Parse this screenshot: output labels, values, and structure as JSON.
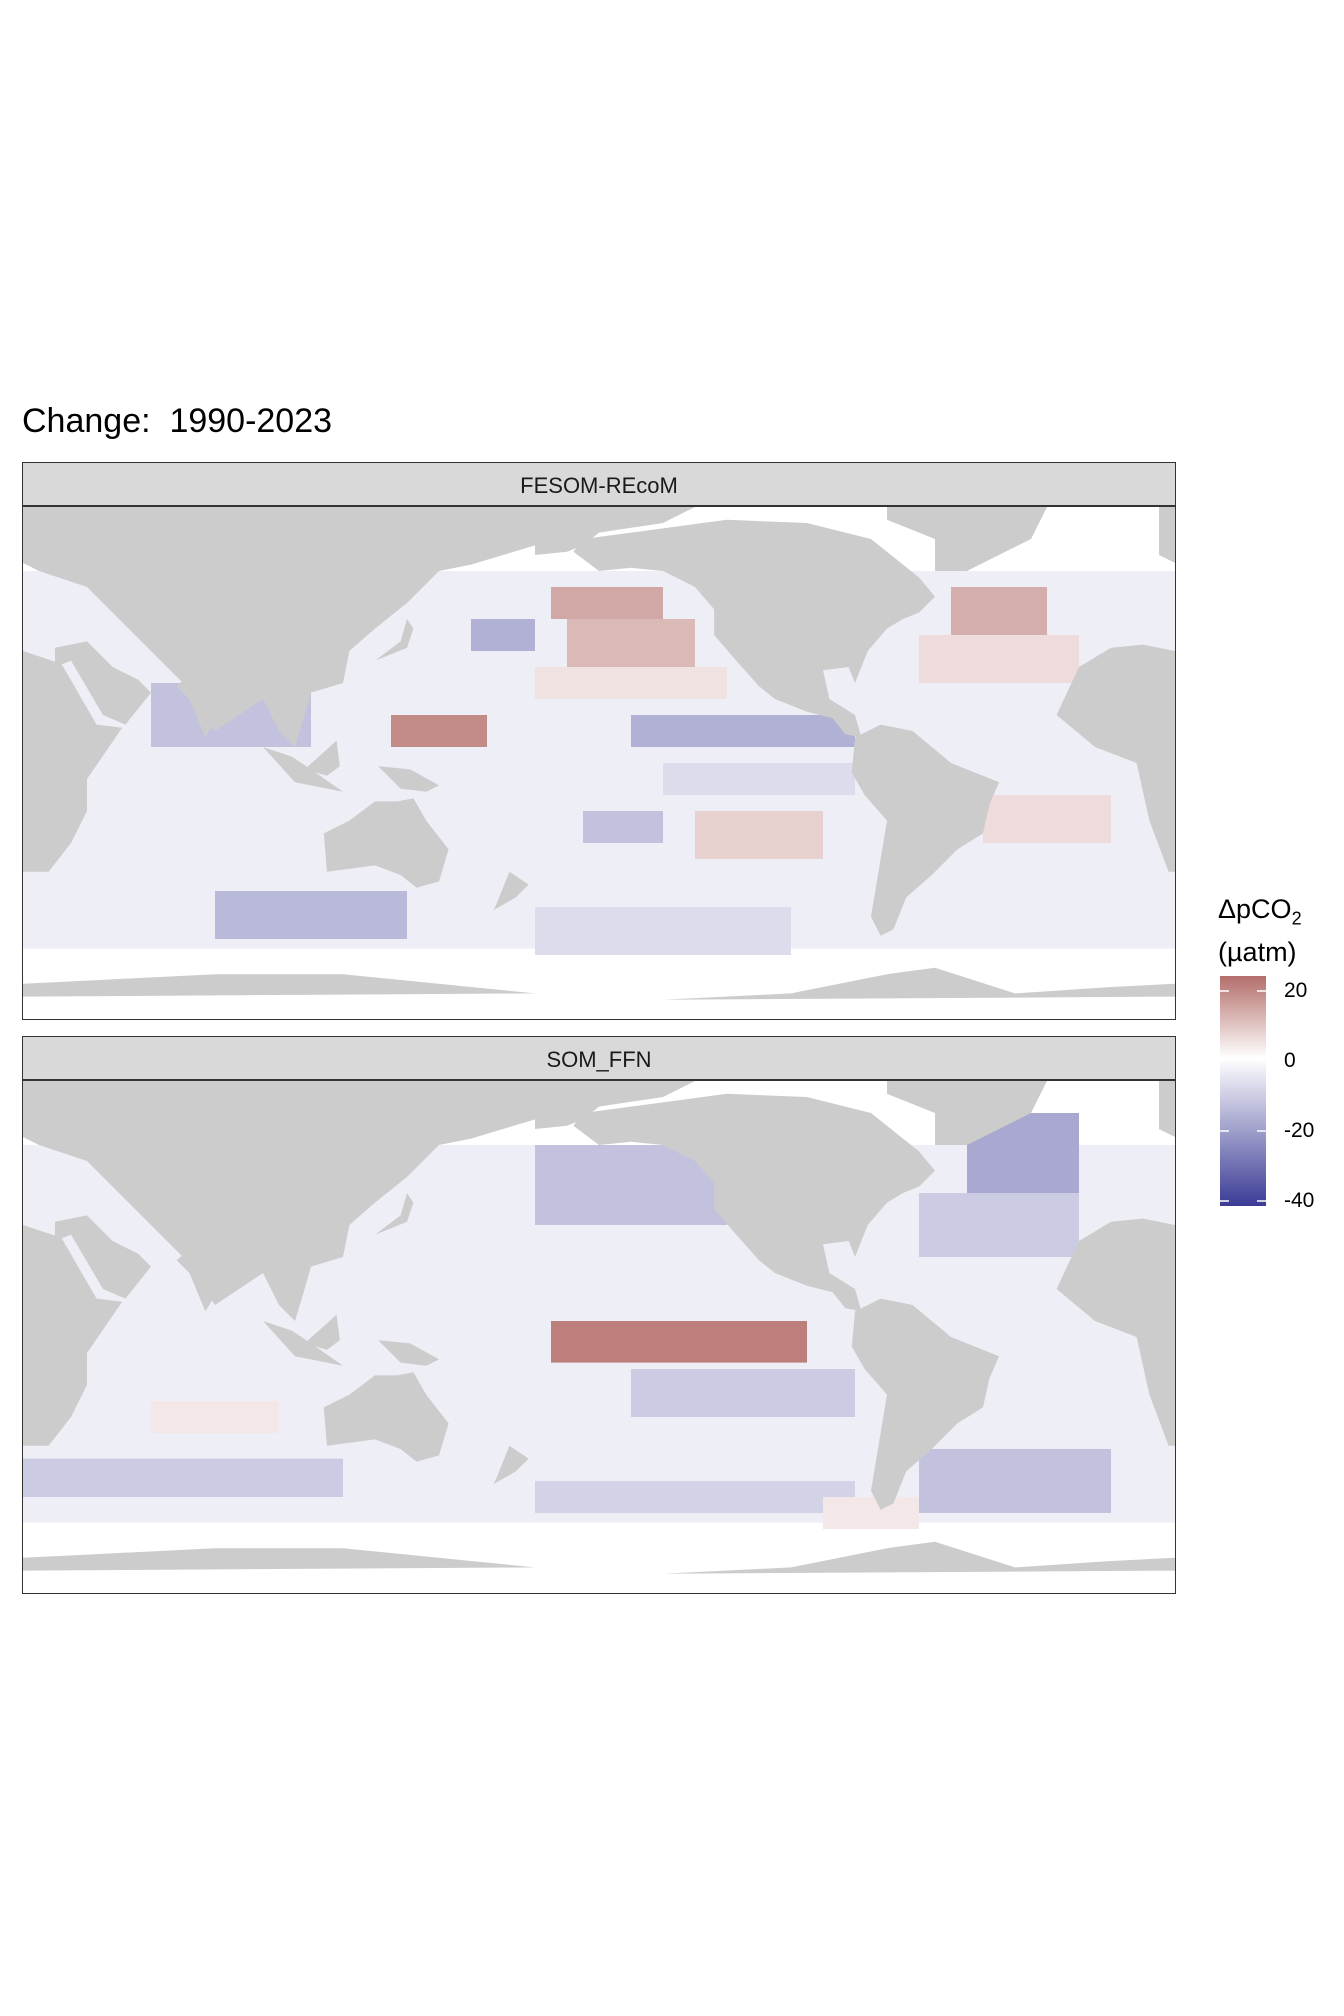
{
  "title": "Change:  1990-2023",
  "legend": {
    "title_main": "ΔpCO",
    "title_sub": "2",
    "title_unit": "(µatm)",
    "ticks": [
      "20",
      "0",
      "-20",
      "-40"
    ],
    "colors": {
      "high": "#b36e6a",
      "mid": "#ffffff",
      "low": "#3b3b96"
    }
  },
  "panels": [
    {
      "label": "FESOM-REcoM"
    },
    {
      "label": "SOM_FFN"
    }
  ],
  "colors": {
    "land": "#cccccc",
    "ocean_missing": "#ffffff",
    "frame": "#333333",
    "strip": "#d9d9d9"
  },
  "chart_data": [
    {
      "type": "heatmap",
      "title": "FESOM-REcoM",
      "xlabel": "",
      "ylabel": "",
      "xlim": [
        -180,
        180
      ],
      "ylim": [
        -80,
        80
      ],
      "value_range": [
        -45,
        25
      ],
      "variable": "ΔpCO2 (µatm)",
      "features": [
        {
          "lon": [
            -175,
            -140
          ],
          "lat": [
            45,
            55
          ],
          "value": 15
        },
        {
          "lon": [
            160,
            180
          ],
          "lat": [
            35,
            45
          ],
          "value": -18
        },
        {
          "lon": [
            -170,
            -130
          ],
          "lat": [
            30,
            45
          ],
          "value": 12
        },
        {
          "lon": [
            -180,
            -120
          ],
          "lat": [
            20,
            30
          ],
          "value": 5
        },
        {
          "lon": [
            135,
            165
          ],
          "lat": [
            5,
            15
          ],
          "value": 20
        },
        {
          "lon": [
            -150,
            -80
          ],
          "lat": [
            5,
            15
          ],
          "value": -18
        },
        {
          "lon": [
            -140,
            -80
          ],
          "lat": [
            -10,
            0
          ],
          "value": -8
        },
        {
          "lon": [
            -130,
            -90
          ],
          "lat": [
            -30,
            -15
          ],
          "value": 8
        },
        {
          "lon": [
            -165,
            -140
          ],
          "lat": [
            -25,
            -15
          ],
          "value": -14
        },
        {
          "lon": [
            -50,
            -20
          ],
          "lat": [
            40,
            55
          ],
          "value": 14
        },
        {
          "lon": [
            -60,
            -10
          ],
          "lat": [
            25,
            40
          ],
          "value": 6
        },
        {
          "lon": [
            -40,
            0
          ],
          "lat": [
            -25,
            -10
          ],
          "value": 6
        },
        {
          "lon": [
            60,
            110
          ],
          "lat": [
            5,
            25
          ],
          "value": -14
        },
        {
          "lon": [
            80,
            140
          ],
          "lat": [
            -55,
            -40
          ],
          "value": -16
        },
        {
          "lon": [
            -180,
            -100
          ],
          "lat": [
            -60,
            -45
          ],
          "value": -8
        }
      ]
    },
    {
      "type": "heatmap",
      "title": "SOM_FFN",
      "xlabel": "",
      "ylabel": "",
      "xlim": [
        -180,
        180
      ],
      "ylim": [
        -80,
        80
      ],
      "value_range": [
        -45,
        25
      ],
      "variable": "ΔpCO2 (µatm)",
      "features": [
        {
          "lon": [
            -175,
            -95
          ],
          "lat": [
            -8,
            5
          ],
          "value": 22
        },
        {
          "lon": [
            -180,
            -120
          ],
          "lat": [
            35,
            60
          ],
          "value": -14
        },
        {
          "lon": [
            -45,
            -10
          ],
          "lat": [
            45,
            70
          ],
          "value": -20
        },
        {
          "lon": [
            -60,
            -10
          ],
          "lat": [
            25,
            45
          ],
          "value": -12
        },
        {
          "lon": [
            -150,
            -80
          ],
          "lat": [
            -25,
            -10
          ],
          "value": -12
        },
        {
          "lon": [
            -60,
            0
          ],
          "lat": [
            -55,
            -35
          ],
          "value": -14
        },
        {
          "lon": [
            20,
            120
          ],
          "lat": [
            -50,
            -38
          ],
          "value": -12
        },
        {
          "lon": [
            -180,
            -80
          ],
          "lat": [
            -55,
            -45
          ],
          "value": -10
        },
        {
          "lon": [
            -90,
            -60
          ],
          "lat": [
            -60,
            -50
          ],
          "value": 4
        },
        {
          "lon": [
            60,
            100
          ],
          "lat": [
            -30,
            -20
          ],
          "value": 4
        }
      ]
    }
  ]
}
